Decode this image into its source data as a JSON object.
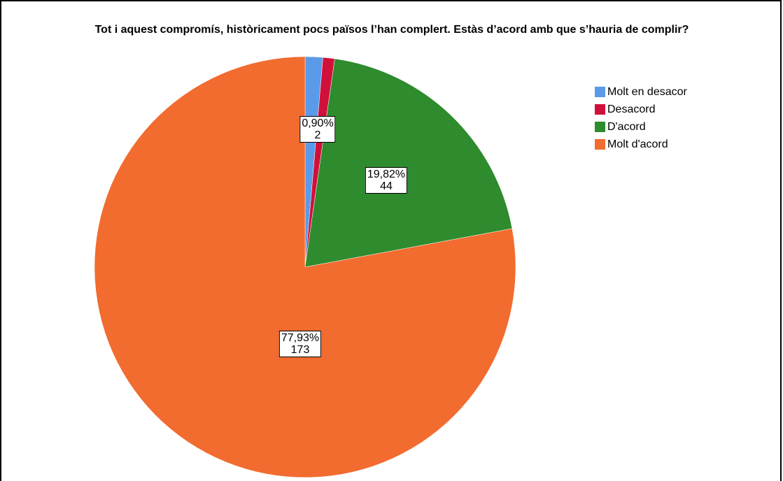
{
  "chart_data": {
    "type": "pie",
    "title": "Tot i aquest compromís, històricament pocs països l’han complert. Estàs d’acord amb que s’hauria de complir?",
    "legend_position": "right",
    "categories": [
      "Molt en desacor",
      "Desacord",
      "D'acord",
      "Molt d'acord"
    ],
    "counts": [
      3,
      2,
      44,
      173
    ],
    "slices": [
      {
        "label": "Molt en desacor",
        "count": 3,
        "color": "#5b9ae8",
        "show_label": false
      },
      {
        "label": "Desacord",
        "count": 2,
        "percent_text": "0,90%",
        "count_text": "2",
        "color": "#d0103a",
        "show_label": true
      },
      {
        "label": "D'acord",
        "count": 44,
        "percent_text": "19,82%",
        "count_text": "44",
        "color": "#2e8b2e",
        "show_label": true
      },
      {
        "label": "Molt d'acord",
        "count": 173,
        "percent_text": "77,93%",
        "count_text": "173",
        "color": "#f26b2f",
        "show_label": true
      }
    ]
  }
}
